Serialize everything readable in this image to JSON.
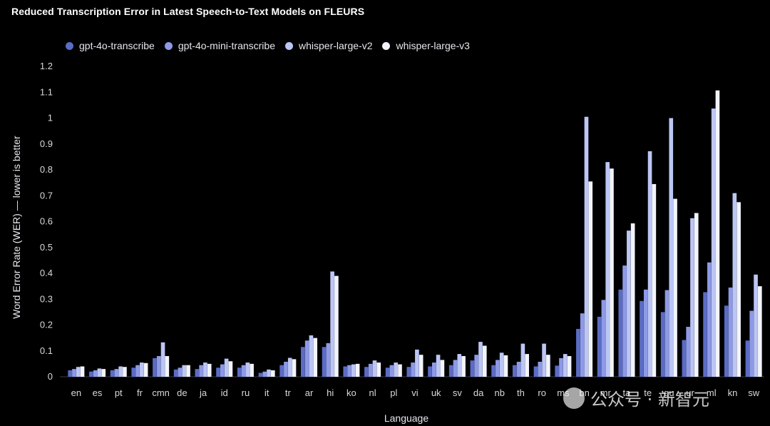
{
  "chart_data": {
    "type": "bar",
    "title": "Reduced Transcription Error in Latest Speech-to-Text Models on FLEURS",
    "xlabel": "Language",
    "ylabel": "Word Error Rate (WER) — lower is better",
    "ylim": [
      0,
      1.2
    ],
    "yticks": [
      "0",
      "0.1",
      "0.2",
      "0.3",
      "0.4",
      "0.5",
      "0.6",
      "0.7",
      "0.8",
      "0.9",
      "1",
      "1.1",
      "1.2"
    ],
    "grid": false,
    "legend_position": "top-left",
    "categories": [
      "en",
      "es",
      "pt",
      "fr",
      "cmn",
      "de",
      "ja",
      "id",
      "ru",
      "it",
      "tr",
      "ar",
      "hi",
      "ko",
      "nl",
      "pl",
      "vi",
      "uk",
      "sv",
      "da",
      "nb",
      "th",
      "ro",
      "ms",
      "bn",
      "mr",
      "ta",
      "te",
      "gu",
      "ur",
      "ml",
      "kn",
      "sw"
    ],
    "series": [
      {
        "name": "gpt-4o-transcribe",
        "color": "#5b6cc4",
        "values": [
          0.025,
          0.02,
          0.025,
          0.035,
          0.072,
          0.028,
          0.03,
          0.035,
          0.035,
          0.015,
          0.045,
          0.115,
          0.115,
          0.04,
          0.038,
          0.035,
          0.038,
          0.04,
          0.045,
          0.063,
          0.045,
          0.045,
          0.04,
          0.043,
          0.185,
          0.232,
          0.337,
          0.293,
          0.25,
          0.142,
          0.327,
          0.275,
          0.14
        ]
      },
      {
        "name": "gpt-4o-mini-transcribe",
        "color": "#8e9ae6",
        "values": [
          0.03,
          0.025,
          0.03,
          0.045,
          0.08,
          0.035,
          0.045,
          0.048,
          0.045,
          0.02,
          0.058,
          0.14,
          0.13,
          0.045,
          0.05,
          0.045,
          0.055,
          0.055,
          0.065,
          0.085,
          0.065,
          0.058,
          0.058,
          0.072,
          0.245,
          0.297,
          0.43,
          0.337,
          0.335,
          0.193,
          0.442,
          0.345,
          0.255
        ]
      },
      {
        "name": "whisper-large-v2",
        "color": "#bcc6f5",
        "values": [
          0.038,
          0.032,
          0.04,
          0.055,
          0.133,
          0.045,
          0.055,
          0.07,
          0.055,
          0.028,
          0.073,
          0.16,
          0.407,
          0.048,
          0.063,
          0.055,
          0.105,
          0.085,
          0.088,
          0.135,
          0.093,
          0.128,
          0.128,
          0.088,
          1.005,
          0.83,
          0.565,
          0.872,
          1.0,
          0.613,
          1.037,
          0.71,
          0.395
        ]
      },
      {
        "name": "whisper-large-v3",
        "color": "#f2f4fb",
        "values": [
          0.04,
          0.03,
          0.038,
          0.053,
          0.08,
          0.045,
          0.05,
          0.06,
          0.05,
          0.025,
          0.068,
          0.15,
          0.39,
          0.05,
          0.055,
          0.048,
          0.085,
          0.065,
          0.08,
          0.12,
          0.083,
          0.088,
          0.085,
          0.08,
          0.755,
          0.805,
          0.593,
          0.745,
          0.688,
          0.633,
          1.107,
          0.675,
          0.35
        ]
      }
    ]
  },
  "watermark": {
    "text": "公众号 · 新智元"
  }
}
